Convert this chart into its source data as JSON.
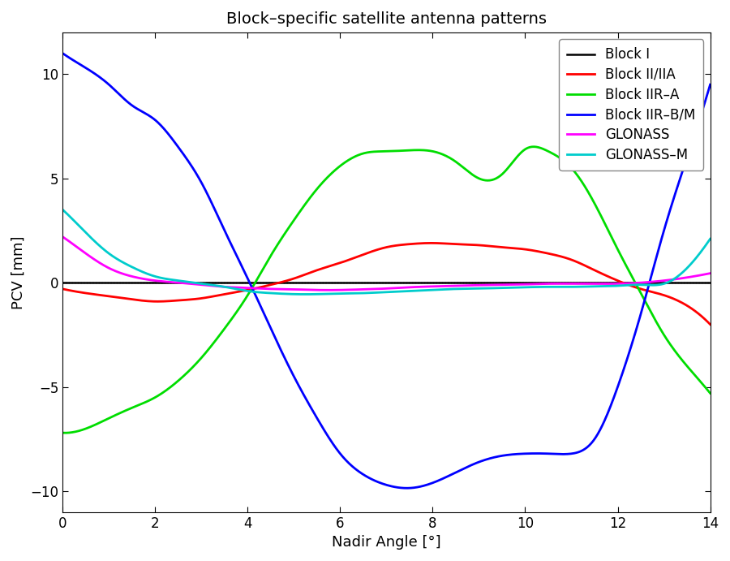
{
  "title": "Block–specific satellite antenna patterns",
  "xlabel": "Nadir Angle [°]",
  "ylabel": "PCV [mm]",
  "xlim": [
    0,
    14
  ],
  "ylim": [
    -11,
    12
  ],
  "xticks": [
    0,
    2,
    4,
    6,
    8,
    10,
    12,
    14
  ],
  "yticks": [
    -10,
    -5,
    0,
    5,
    10
  ],
  "background_color": "#ffffff",
  "figsize": [
    9.0,
    6.91
  ],
  "dpi": 100,
  "series": [
    {
      "label": "Block I",
      "color": "#000000",
      "linewidth": 1.8,
      "x": [
        0,
        14
      ],
      "y": [
        0,
        0
      ],
      "smooth": false
    },
    {
      "label": "Block II/IIA",
      "color": "#ff0000",
      "linewidth": 2.0,
      "smooth": true,
      "x": [
        0,
        0.5,
        1,
        1.5,
        2,
        2.5,
        3,
        3.5,
        4,
        4.5,
        5,
        5.5,
        6,
        6.5,
        7,
        7.5,
        8,
        8.5,
        9,
        9.5,
        10,
        10.5,
        11,
        11.5,
        12,
        12.5,
        13,
        13.5,
        14
      ],
      "y": [
        -0.3,
        -0.5,
        -0.65,
        -0.8,
        -0.9,
        -0.85,
        -0.75,
        -0.55,
        -0.35,
        -0.1,
        0.2,
        0.6,
        0.95,
        1.35,
        1.7,
        1.85,
        1.9,
        1.85,
        1.8,
        1.7,
        1.6,
        1.4,
        1.1,
        0.6,
        0.1,
        -0.3,
        -0.6,
        -1.1,
        -2.0
      ]
    },
    {
      "label": "Block IIR–A",
      "color": "#00dd00",
      "linewidth": 2.0,
      "smooth": true,
      "x": [
        0,
        0.5,
        1,
        1.5,
        2,
        2.5,
        3,
        3.5,
        4,
        4.5,
        5,
        5.5,
        6,
        6.5,
        7,
        7.5,
        8,
        8.5,
        9,
        9.5,
        10,
        10.5,
        11,
        11.5,
        12,
        12.5,
        13,
        13.5,
        14
      ],
      "y": [
        -7.2,
        -7.0,
        -6.5,
        -6.0,
        -5.5,
        -4.7,
        -3.6,
        -2.2,
        -0.6,
        1.3,
        3.0,
        4.5,
        5.6,
        6.2,
        6.3,
        6.35,
        6.3,
        5.8,
        5.0,
        5.2,
        6.4,
        6.3,
        5.5,
        3.8,
        1.6,
        -0.5,
        -2.5,
        -4.0,
        -5.3
      ]
    },
    {
      "label": "Block IIR–B/M",
      "color": "#0000ff",
      "linewidth": 2.0,
      "smooth": true,
      "x": [
        0,
        0.5,
        1,
        1.5,
        2,
        2.5,
        3,
        3.5,
        4,
        4.5,
        5,
        5.5,
        6,
        6.5,
        7,
        7.5,
        8,
        8.5,
        9,
        9.5,
        10,
        10.5,
        11,
        11.5,
        12,
        12.5,
        13,
        13.5,
        14
      ],
      "y": [
        11.0,
        10.3,
        9.5,
        8.5,
        7.8,
        6.5,
        4.8,
        2.5,
        0.2,
        -2.2,
        -4.5,
        -6.5,
        -8.2,
        -9.2,
        -9.7,
        -9.85,
        -9.6,
        -9.1,
        -8.6,
        -8.3,
        -8.2,
        -8.2,
        -8.2,
        -7.5,
        -5.0,
        -1.5,
        2.5,
        6.0,
        9.5
      ]
    },
    {
      "label": "GLONASS",
      "color": "#ff00ff",
      "linewidth": 2.0,
      "smooth": true,
      "x": [
        0,
        0.5,
        1,
        1.5,
        2,
        2.5,
        3,
        3.5,
        4,
        4.5,
        5,
        5.5,
        6,
        6.5,
        7,
        7.5,
        8,
        8.5,
        9,
        9.5,
        10,
        10.5,
        11,
        11.5,
        12,
        12.5,
        13,
        13.5,
        14
      ],
      "y": [
        2.2,
        1.4,
        0.7,
        0.3,
        0.1,
        0.0,
        -0.1,
        -0.2,
        -0.25,
        -0.3,
        -0.32,
        -0.35,
        -0.35,
        -0.32,
        -0.28,
        -0.22,
        -0.18,
        -0.15,
        -0.12,
        -0.1,
        -0.08,
        -0.05,
        -0.05,
        -0.05,
        -0.05,
        0.0,
        0.1,
        0.25,
        0.45
      ]
    },
    {
      "label": "GLONASS–M",
      "color": "#00cccc",
      "linewidth": 2.0,
      "smooth": true,
      "x": [
        0,
        0.5,
        1,
        1.5,
        2,
        2.5,
        3,
        3.5,
        4,
        4.5,
        5,
        5.5,
        6,
        6.5,
        7,
        7.5,
        8,
        8.5,
        9,
        9.5,
        10,
        10.5,
        11,
        11.5,
        12,
        12.5,
        13,
        13.5,
        14
      ],
      "y": [
        3.5,
        2.4,
        1.4,
        0.75,
        0.3,
        0.1,
        -0.05,
        -0.2,
        -0.4,
        -0.5,
        -0.55,
        -0.55,
        -0.52,
        -0.5,
        -0.45,
        -0.4,
        -0.35,
        -0.3,
        -0.28,
        -0.25,
        -0.22,
        -0.2,
        -0.2,
        -0.18,
        -0.15,
        -0.1,
        -0.05,
        0.7,
        2.1
      ]
    }
  ]
}
